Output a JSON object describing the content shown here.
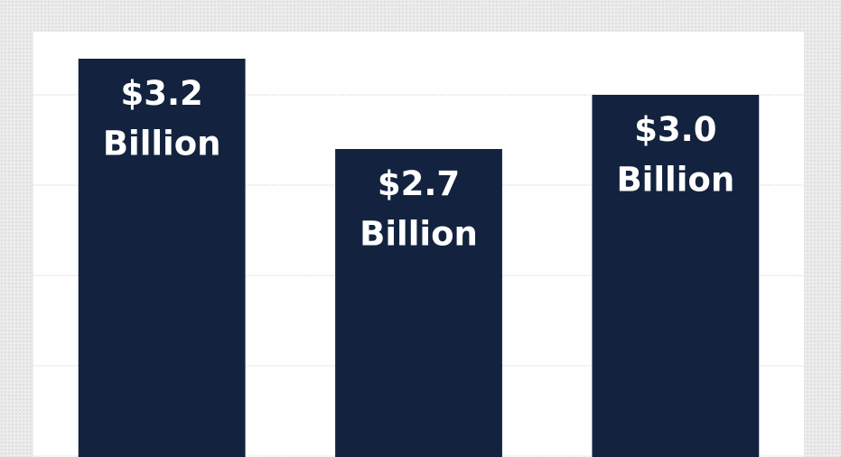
{
  "chart_data": {
    "type": "bar",
    "categories": [
      null,
      null,
      null
    ],
    "values": [
      3.2,
      2.7,
      3.0
    ],
    "value_labels": [
      "$3.2 Billion",
      "$2.7 Billion",
      "$3.0 Billion"
    ],
    "color": "#13233f",
    "ylim": [
      1,
      3.35
    ],
    "yticks": [
      1,
      1.5,
      2,
      2.5,
      3
    ],
    "grid": true
  }
}
